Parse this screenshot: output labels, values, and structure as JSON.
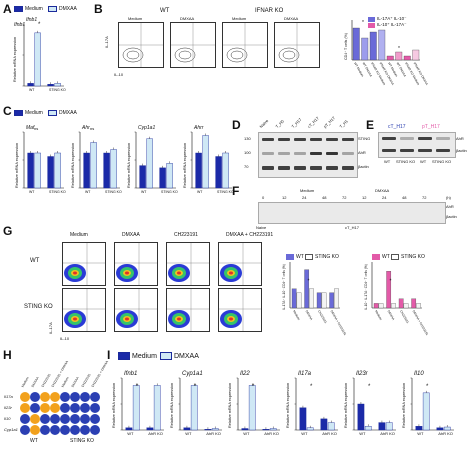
{
  "panels": {
    "A": {
      "letter": "A"
    },
    "B": {
      "letter": "B"
    },
    "C": {
      "letter": "C"
    },
    "D": {
      "letter": "D"
    },
    "E": {
      "letter": "E"
    },
    "F": {
      "letter": "F"
    },
    "G": {
      "letter": "G"
    },
    "H": {
      "letter": "H"
    },
    "I": {
      "letter": "I"
    }
  },
  "legend": {
    "medium": "Medium",
    "dmxaa": "DMXAA"
  },
  "colors": {
    "medium": "#1b2aa8",
    "dmxaa": "#cfe8f5",
    "bar_outline": "#1b2a9b",
    "pink": "#e35aa8",
    "purple": "#6a6ad8",
    "lightpink": "#f6c9e2"
  },
  "panelA": {
    "gene": "Ifnb1",
    "ylabel": "Relative mRNA expression",
    "xticks": [
      "WT",
      "STING KO"
    ],
    "sig": "*"
  },
  "panelB": {
    "headers": {
      "wt": "WT",
      "ifnar": "IFNAR KO"
    },
    "cols": [
      "Medium",
      "DMXAA",
      "Medium",
      "DMXAA"
    ],
    "ylabel": "IL-17A",
    "xlabel": "IL-10",
    "bar_legend": {
      "il17": "IL-17A⁺ IL-10⁻",
      "il10": "IL-10⁺ IL-17A⁻"
    },
    "bar_ylabel": "CD4⁺ T cells (%)",
    "bar_xlabels": [
      "WT Medium",
      "WT DMXAA",
      "IFNAR KO Medium",
      "IFNAR KO DMXAA",
      "WT Medium",
      "WT DMXAA",
      "IFNAR KO Medium",
      "IFNAR KO DMXAA"
    ]
  },
  "panelC": {
    "genes": [
      "Maf",
      "Ahr",
      "Cyp1a1",
      "Ahrr"
    ],
    "ylabel": "Relative mRNA expression",
    "xticks": [
      "WT",
      "STING KO"
    ],
    "ns": "ns"
  },
  "panelD": {
    "lanes": [
      "Naive",
      "T_H0",
      "T_H17",
      "cT_H17",
      "pT_H17",
      "T_H1"
    ],
    "bands": [
      "STING",
      "AhR",
      "βactin"
    ],
    "mw": [
      "130",
      "100",
      "70"
    ]
  },
  "panelE": {
    "titles": {
      "c": "cT_H17",
      "p": "pT_H17"
    },
    "xticks": [
      "WT",
      "STING KO",
      "WT",
      "STING KO"
    ],
    "bands": [
      "AhR",
      "βactin"
    ]
  },
  "panelF": {
    "groups": {
      "medium": "Medium",
      "dmxaa": "DMXAA"
    },
    "times": [
      "0",
      "12",
      "24",
      "48",
      "72",
      "12",
      "24",
      "48",
      "72"
    ],
    "unit": "(h)",
    "bands": [
      "AhR",
      "βactin"
    ],
    "xlabels": {
      "naive": "Naive",
      "c": "cT_H17"
    }
  },
  "panelG": {
    "cols": [
      "Medium",
      "DMXAA",
      "CH223191",
      "DMXAA + CH223191"
    ],
    "rows": [
      "WT",
      "STING KO"
    ],
    "ylabel": "IL-17A",
    "xlabel": "IL-10",
    "bar_legend": {
      "wt": "WT",
      "ko": "STING KO"
    },
    "bar_ylabel1": "IL-17A⁺ IL-10⁻ CD4⁺ T cells (%)",
    "bar_ylabel2": "IL-10⁺ IL-17A⁻ CD4⁺ T cells (%)",
    "bar_xlabels": [
      "Medium",
      "DMXAA",
      "CH223191",
      "DMXAA + CH223191"
    ]
  },
  "panelH": {
    "rows": [
      "Il17a",
      "Il23r",
      "Il10",
      "Cyp1a1"
    ],
    "cols": [
      "Medium",
      "DMXAA",
      "CH223191",
      "CH223191 + DMXAA",
      "Medium",
      "DMXAA",
      "CH223191",
      "CH223191 + DMXAA"
    ],
    "groups": [
      "WT",
      "STING KO"
    ]
  },
  "panelI": {
    "genes": [
      "Ifnb1",
      "Cyp1a1",
      "Il22",
      "Il17a",
      "Il23r",
      "Il10"
    ],
    "ylabel": "Relative mRNA expression",
    "xticks": [
      "WT",
      "AhR KO"
    ],
    "sig": "*"
  },
  "chart_data": [
    {
      "type": "bar",
      "title": "Ifnb1",
      "categories": [
        "WT",
        "STING KO"
      ],
      "series": [
        {
          "name": "Medium",
          "values": [
            0.3,
            0.2
          ]
        },
        {
          "name": "DMXAA",
          "values": [
            6.0,
            0.3
          ]
        }
      ]
    },
    {
      "type": "bar",
      "title": "",
      "categories": [
        "WT Medium",
        "WT DMXAA",
        "IFNAR KO Medium",
        "IFNAR KO DMXAA",
        "WT Medium",
        "WT DMXAA",
        "IFNAR KO Medium",
        "IFNAR KO DMXAA"
      ],
      "values": [
        1.6,
        1.1,
        1.4,
        1.5,
        0.2,
        0.4,
        0.2,
        0.5
      ]
    },
    {
      "type": "bar",
      "title": "Maf",
      "categories": [
        "WT",
        "STING KO"
      ],
      "series": [
        {
          "name": "Medium",
          "values": [
            1.0,
            0.9
          ]
        },
        {
          "name": "DMXAA",
          "values": [
            1.0,
            1.0
          ]
        }
      ]
    },
    {
      "type": "bar",
      "title": "Ahr",
      "categories": [
        "WT",
        "STING KO"
      ],
      "series": [
        {
          "name": "Medium",
          "values": [
            1.0,
            1.0
          ]
        },
        {
          "name": "DMXAA",
          "values": [
            1.3,
            1.1
          ]
        }
      ]
    },
    {
      "type": "bar",
      "title": "Cyp1a1",
      "categories": [
        "WT",
        "STING KO"
      ],
      "series": [
        {
          "name": "Medium",
          "values": [
            1.0,
            0.9
          ]
        },
        {
          "name": "DMXAA",
          "values": [
            2.2,
            1.1
          ]
        }
      ]
    },
    {
      "type": "bar",
      "title": "Ahrr",
      "categories": [
        "WT",
        "STING KO"
      ],
      "series": [
        {
          "name": "Medium",
          "values": [
            1.0,
            0.9
          ]
        },
        {
          "name": "DMXAA",
          "values": [
            1.5,
            1.0
          ]
        }
      ]
    },
    {
      "type": "bar",
      "title": "",
      "categories": [
        "Medium",
        "DMXAA",
        "CH223191",
        "DMXAA + CH223191"
      ],
      "series": [
        {
          "name": "WT",
          "values": [
            5,
            10,
            4,
            4
          ]
        },
        {
          "name": "STING KO",
          "values": [
            4,
            5,
            4,
            5
          ]
        }
      ]
    },
    {
      "type": "bar",
      "title": "",
      "categories": [
        "Medium",
        "DMXAA",
        "CH223191",
        "DMXAA + CH223191"
      ],
      "series": [
        {
          "name": "WT",
          "values": [
            1,
            8,
            2,
            2
          ]
        },
        {
          "name": "STING KO",
          "values": [
            1,
            1,
            1,
            1
          ]
        }
      ]
    },
    {
      "type": "bar",
      "title": "Ifnb1",
      "categories": [
        "WT",
        "AhR KO"
      ],
      "series": [
        {
          "name": "Medium",
          "values": [
            0.3,
            0.3
          ]
        },
        {
          "name": "DMXAA",
          "values": [
            6.0,
            6.0
          ]
        }
      ]
    },
    {
      "type": "bar",
      "title": "Cyp1a1",
      "categories": [
        "WT",
        "AhR KO"
      ],
      "series": [
        {
          "name": "Medium",
          "values": [
            0.3,
            0.1
          ]
        },
        {
          "name": "DMXAA",
          "values": [
            6.0,
            0.2
          ]
        }
      ]
    },
    {
      "type": "bar",
      "title": "Il22",
      "categories": [
        "WT",
        "AhR KO"
      ],
      "series": [
        {
          "name": "Medium",
          "values": [
            0.2,
            0.1
          ]
        },
        {
          "name": "DMXAA",
          "values": [
            6.0,
            0.2
          ]
        }
      ]
    },
    {
      "type": "bar",
      "title": "Il17a",
      "categories": [
        "WT",
        "AhR KO"
      ],
      "series": [
        {
          "name": "Medium",
          "values": [
            3.0,
            1.5
          ]
        },
        {
          "name": "DMXAA",
          "values": [
            0.3,
            1.0
          ]
        }
      ]
    },
    {
      "type": "bar",
      "title": "Il23r",
      "categories": [
        "WT",
        "AhR KO"
      ],
      "series": [
        {
          "name": "Medium",
          "values": [
            3.5,
            1.0
          ]
        },
        {
          "name": "DMXAA",
          "values": [
            0.5,
            1.0
          ]
        }
      ]
    },
    {
      "type": "bar",
      "title": "Il10",
      "categories": [
        "WT",
        "AhR KO"
      ],
      "series": [
        {
          "name": "Medium",
          "values": [
            0.5,
            0.3
          ]
        },
        {
          "name": "DMXAA",
          "values": [
            5.0,
            0.4
          ]
        }
      ]
    }
  ]
}
